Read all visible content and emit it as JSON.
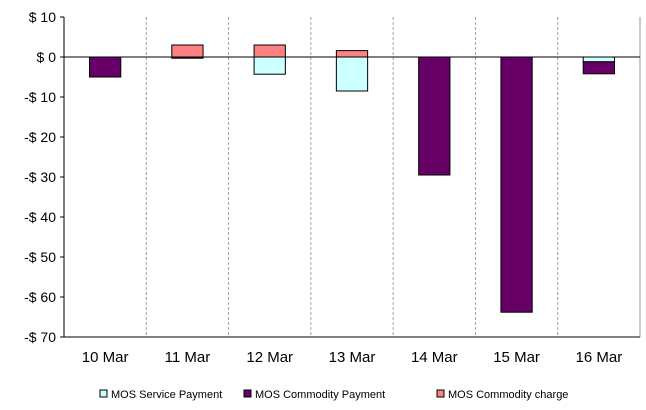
{
  "chart_data": {
    "type": "bar",
    "stacked": true,
    "categories": [
      "10 Mar",
      "11 Mar",
      "12 Mar",
      "13 Mar",
      "14 Mar",
      "15 Mar",
      "16 Mar"
    ],
    "series": [
      {
        "name": "MOS Service Payment",
        "values": [
          0,
          0,
          -4.3,
          -8.5,
          0,
          0,
          -1.2
        ],
        "color": "#ccffff"
      },
      {
        "name": "MOS Commodity Payment",
        "values": [
          -5.0,
          -0.3,
          0,
          0,
          -29.5,
          -63.8,
          -3.0
        ],
        "color": "#660066"
      },
      {
        "name": "MOS Commodity charge",
        "values": [
          0,
          3.0,
          3.0,
          1.6,
          0,
          0,
          0
        ],
        "color": "#ff8080"
      }
    ],
    "y_ticks": [
      {
        "value": 10,
        "label": "$ 10"
      },
      {
        "value": 0,
        "label": "$ 0"
      },
      {
        "value": -10,
        "label": "-$ 10"
      },
      {
        "value": -20,
        "label": "-$ 20"
      },
      {
        "value": -30,
        "label": "-$ 30"
      },
      {
        "value": -40,
        "label": "-$ 40"
      },
      {
        "value": -50,
        "label": "-$ 50"
      },
      {
        "value": -60,
        "label": "-$ 60"
      },
      {
        "value": -70,
        "label": "-$ 70"
      }
    ],
    "ylim": [
      -70,
      10
    ],
    "grid": "vertical dashed between categories",
    "legend": "bottom"
  }
}
